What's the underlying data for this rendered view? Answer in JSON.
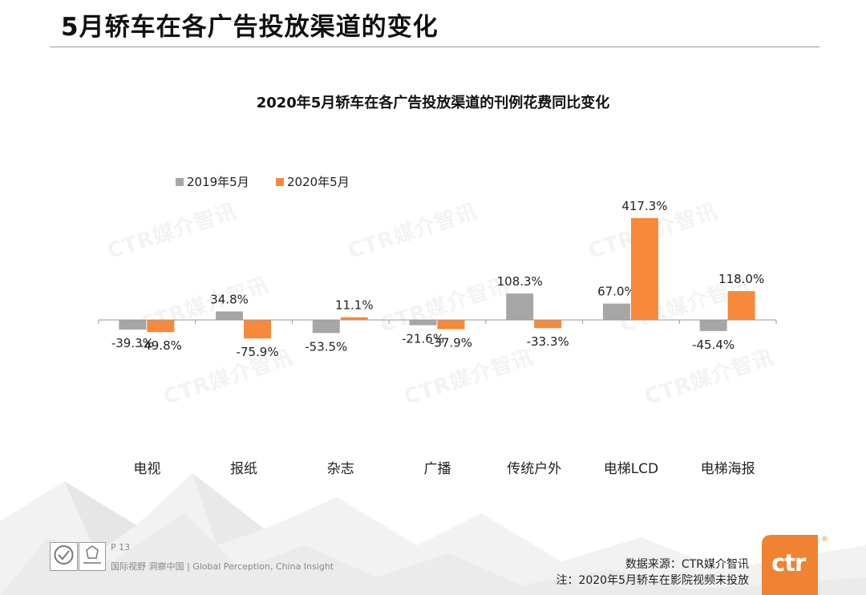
{
  "page": {
    "title": "5月轿车在各广告投放渠道的变化",
    "page_number": "P 13",
    "slogan": "国际视野 洞察中国 | Global Perception, China Insight",
    "source": "数据来源：CTR媒介智讯",
    "note": "注：2020年5月轿车在影院视频未投放",
    "watermark": "CTR媒介智讯",
    "logo_text": "ctr",
    "logo_reg": "®"
  },
  "colors": {
    "series_2019": "#a6a6a6",
    "series_2020": "#f6893a",
    "brand_orange": "#f08332"
  },
  "chart_data": {
    "type": "bar",
    "title": "2020年5月轿车在各广告投放渠道的刊例花费同比变化",
    "categories": [
      "电视",
      "报纸",
      "杂志",
      "广播",
      "传统户外",
      "电梯LCD",
      "电梯海报"
    ],
    "series": [
      {
        "name": "2019年5月",
        "values": [
          -39.3,
          34.8,
          -53.5,
          -21.6,
          108.3,
          67.0,
          -45.4
        ]
      },
      {
        "name": "2020年5月",
        "values": [
          -49.8,
          -75.9,
          11.1,
          -37.9,
          -33.3,
          417.3,
          118.0
        ]
      }
    ],
    "data_labels": [
      [
        "-39.3%",
        "34.8%",
        "-53.5%",
        "-21.6%",
        "108.3%",
        "67.0%",
        "-45.4%"
      ],
      [
        "-49.8%",
        "-75.9%",
        "11.1%",
        "-37.9%",
        "-33.3%",
        "417.3%",
        "118.0%"
      ]
    ],
    "xlabel": "",
    "ylabel": "",
    "y_unit": "%",
    "grid": false,
    "legend": "top-left"
  }
}
